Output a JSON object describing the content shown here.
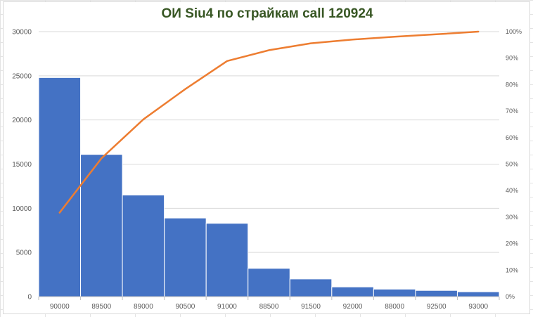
{
  "chart_data": {
    "type": "bar",
    "title": "ОИ Siu4 по страйкам call 120924",
    "categories": [
      "90000",
      "89500",
      "89000",
      "90500",
      "91000",
      "88500",
      "91500",
      "92000",
      "88000",
      "92500",
      "93000"
    ],
    "series": [
      {
        "type": "bar",
        "axis": "left",
        "color": "#4472C4",
        "values": [
          24800,
          16100,
          11500,
          8900,
          8300,
          3200,
          2000,
          1100,
          850,
          700,
          550
        ]
      },
      {
        "type": "line",
        "axis": "right",
        "color": "#ED7D31",
        "values": [
          31.7,
          52.2,
          66.9,
          78.3,
          88.9,
          93.0,
          95.6,
          97.0,
          98.1,
          99.0,
          100.0
        ]
      }
    ],
    "y_left": {
      "min": 0,
      "max": 30000,
      "ticks": [
        "0",
        "5000",
        "10000",
        "15000",
        "20000",
        "25000",
        "30000"
      ]
    },
    "y_right": {
      "min": 0,
      "max": 100,
      "ticks": [
        "0%",
        "10%",
        "20%",
        "30%",
        "40%",
        "50%",
        "60%",
        "70%",
        "80%",
        "90%",
        "100%"
      ]
    },
    "grid": true,
    "legend": "none"
  }
}
